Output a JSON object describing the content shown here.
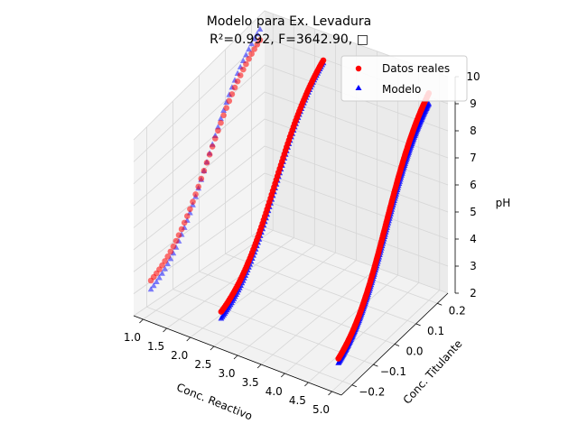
{
  "chart_data": {
    "type": "scatter3d",
    "title_line1": "Modelo para Ex. Levadura",
    "title_line2": "R²=0.992, F=3642.90, □",
    "xlabel": "Conc. Reactivo",
    "ylabel": "Conc. Titulante",
    "zlabel": "pH",
    "xlim": [
      0.8,
      5.2
    ],
    "ylim": [
      -0.25,
      0.25
    ],
    "zlim": [
      2,
      10
    ],
    "xticks": [
      "1.0",
      "1.5",
      "2.0",
      "2.5",
      "3.0",
      "3.5",
      "4.0",
      "4.5",
      "5.0"
    ],
    "yticks": [
      "−0.2",
      "−0.1",
      "0.0",
      "0.1",
      "0.2"
    ],
    "zticks": [
      "2",
      "3",
      "4",
      "5",
      "6",
      "7",
      "8",
      "9",
      "10"
    ],
    "legend": {
      "placement": "upper-right",
      "entries": [
        {
          "label": "Datos reales",
          "color": "#ff0000",
          "marker": "circle"
        },
        {
          "label": "Modelo",
          "color": "#0000ff",
          "marker": "triangle"
        }
      ]
    },
    "series": [
      {
        "name": "Datos reales",
        "color": "#ff0000",
        "curves": [
          {
            "x": 1.0,
            "y_range": [
              -0.22,
              0.2
            ],
            "z_range": [
              3.5,
              9.5
            ],
            "n": 40
          },
          {
            "x": 2.5,
            "y_range": [
              -0.22,
              0.2
            ],
            "z_range": [
              3.3,
              9.6
            ],
            "n": 90
          },
          {
            "x": 5.0,
            "y_range": [
              -0.22,
              0.2
            ],
            "z_range": [
              3.2,
              9.8
            ],
            "n": 150
          }
        ]
      },
      {
        "name": "Modelo",
        "color": "#0000ff",
        "curves": [
          {
            "x": 1.0,
            "y_range": [
              -0.22,
              0.2
            ],
            "z_range": [
              3.1,
              9.9
            ],
            "n": 40
          },
          {
            "x": 2.5,
            "y_range": [
              -0.22,
              0.2
            ],
            "z_range": [
              3.0,
              9.5
            ],
            "n": 90
          },
          {
            "x": 5.0,
            "y_range": [
              -0.22,
              0.2
            ],
            "z_range": [
              3.0,
              9.4
            ],
            "n": 150
          }
        ]
      }
    ]
  }
}
